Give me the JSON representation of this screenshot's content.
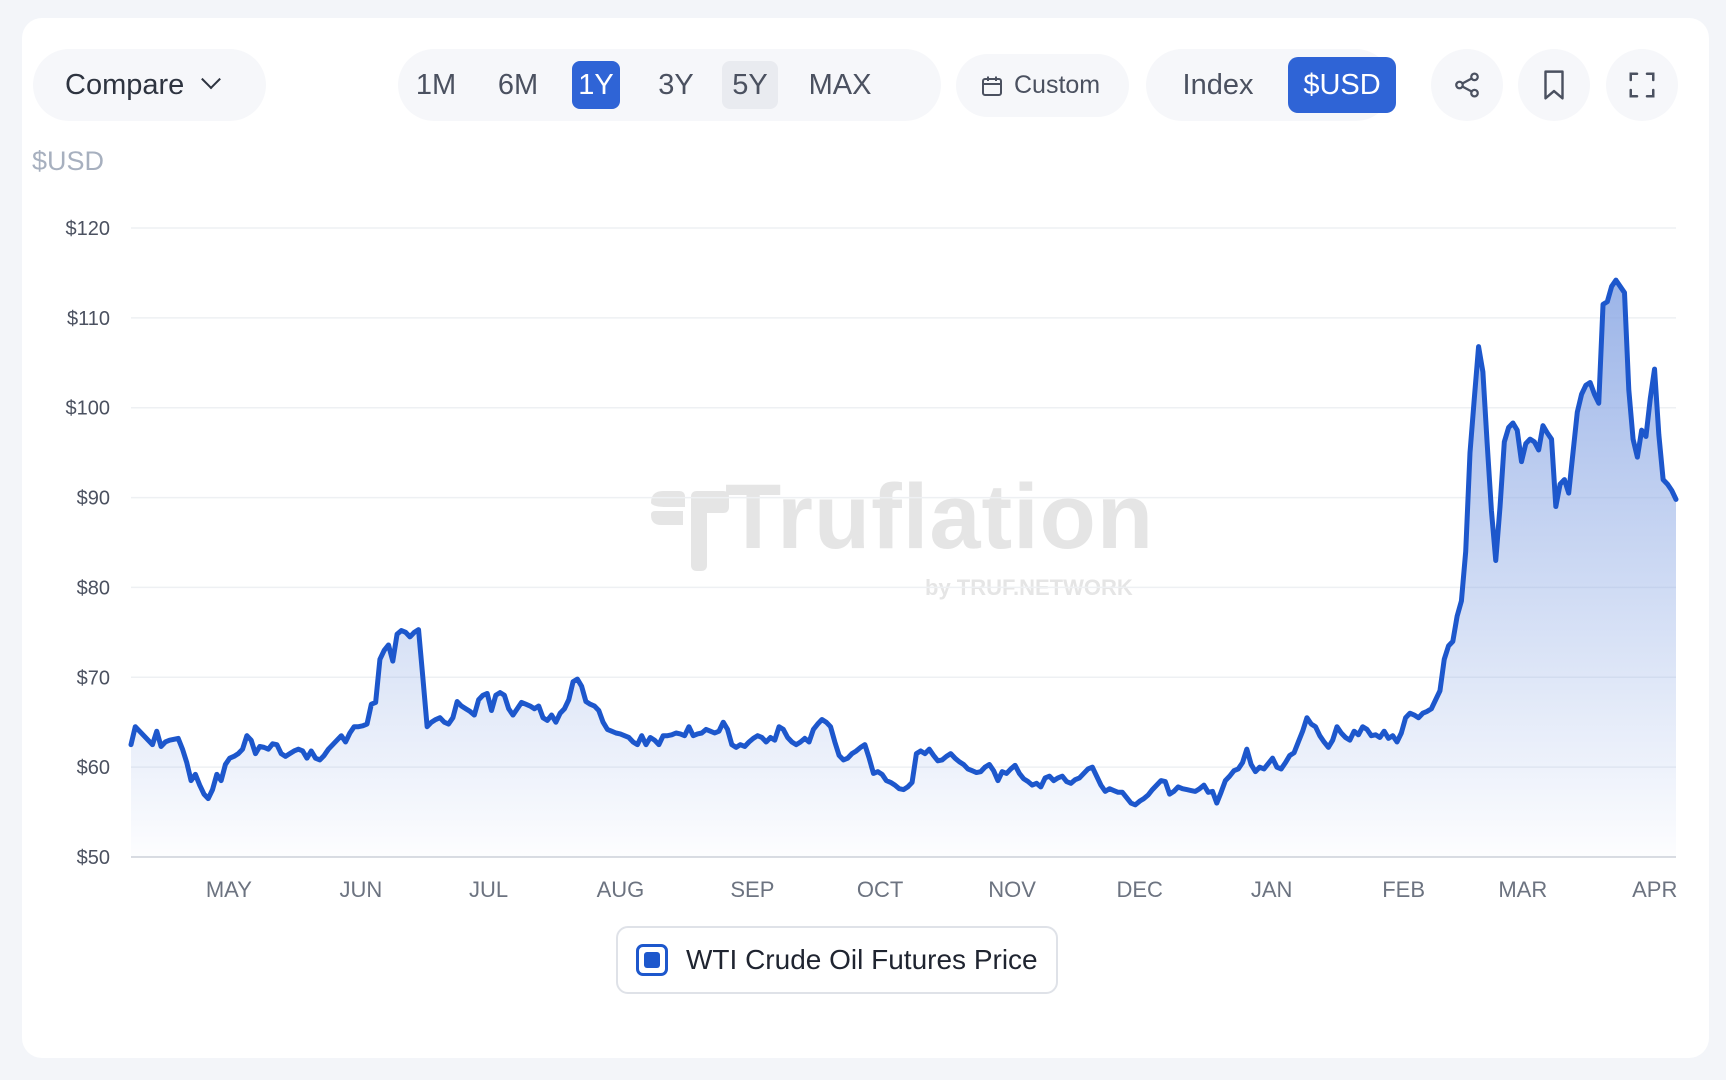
{
  "toolbar": {
    "compare_label": "Compare",
    "ranges": [
      {
        "label": "1M",
        "state": "normal"
      },
      {
        "label": "6M",
        "state": "normal"
      },
      {
        "label": "1Y",
        "state": "active"
      },
      {
        "label": "3Y",
        "state": "normal"
      },
      {
        "label": "5Y",
        "state": "hover"
      },
      {
        "label": "MAX",
        "state": "normal"
      }
    ],
    "custom_label": "Custom",
    "mode_index_label": "Index",
    "mode_usd_label": "$USD",
    "icons": [
      "share-icon",
      "bookmark-icon",
      "fullscreen-icon"
    ]
  },
  "colors": {
    "line": "#1d57cc",
    "fill_top": "#8aa7e4",
    "active": "#2f64d6"
  },
  "watermark": {
    "brand": "Truflation",
    "tagline": "by TRUF.NETWORK"
  },
  "chart_data": {
    "type": "area",
    "unit_label": "$USD",
    "ylim": [
      50,
      120
    ],
    "yticks": [
      50,
      60,
      70,
      80,
      90,
      100,
      110,
      120
    ],
    "ytick_labels": [
      "$50",
      "$60",
      "$70",
      "$80",
      "$90",
      "$100",
      "$110",
      "$120"
    ],
    "x_tick_labels": [
      "MAY",
      "JUN",
      "JUL",
      "AUG",
      "SEP",
      "OCT",
      "NOV",
      "DEC",
      "JAN",
      "FEB",
      "MAR",
      "APR"
    ],
    "grid": true,
    "legend_position": "bottom-center",
    "series": [
      {
        "name": "WTI Crude Oil Futures Price",
        "x_start": "2025-04-22",
        "x_end": "2026-04-20",
        "values": [
          62.5,
          64.5,
          64.0,
          63.5,
          63.0,
          62.5,
          64.0,
          62.3,
          62.8,
          63.0,
          63.1,
          63.2,
          62.0,
          60.5,
          58.5,
          59.2,
          58.0,
          57.0,
          56.5,
          57.5,
          59.2,
          58.5,
          60.3,
          61.0,
          61.2,
          61.5,
          62.0,
          63.5,
          63.0,
          61.5,
          62.3,
          62.2,
          62.0,
          62.6,
          62.5,
          61.5,
          61.2,
          61.5,
          61.8,
          62.0,
          61.8,
          61.0,
          61.8,
          61.0,
          60.8,
          61.3,
          62.0,
          62.5,
          63.0,
          63.5,
          62.8,
          63.8,
          64.5,
          64.5,
          64.6,
          64.8,
          67.0,
          67.2,
          72.0,
          73.0,
          73.6,
          71.8,
          74.8,
          75.2,
          75.0,
          74.5,
          75.0,
          75.3,
          70.0,
          64.5,
          65.0,
          65.3,
          65.5,
          65.0,
          64.8,
          65.5,
          67.3,
          66.8,
          66.5,
          66.2,
          65.8,
          67.5,
          68.0,
          68.2,
          66.3,
          68.0,
          68.3,
          68.0,
          66.5,
          65.8,
          66.5,
          67.2,
          67.0,
          66.8,
          66.5,
          66.8,
          65.5,
          65.2,
          65.8,
          65.0,
          66.0,
          66.5,
          67.5,
          69.5,
          69.8,
          69.0,
          67.3,
          67.0,
          66.8,
          66.3,
          65.0,
          64.2,
          64.0,
          63.8,
          63.7,
          63.5,
          63.3,
          62.8,
          62.5,
          63.5,
          62.5,
          63.3,
          63.0,
          62.5,
          63.5,
          63.5,
          63.6,
          63.8,
          63.7,
          63.5,
          64.5,
          63.5,
          63.7,
          63.8,
          64.2,
          64.0,
          63.8,
          64.0,
          65.0,
          64.2,
          62.5,
          62.2,
          62.5,
          62.3,
          62.8,
          63.2,
          63.5,
          63.3,
          62.8,
          63.3,
          63.0,
          64.5,
          64.2,
          63.3,
          62.8,
          62.5,
          62.8,
          63.2,
          62.8,
          64.2,
          64.8,
          65.3,
          65.0,
          64.5,
          62.8,
          61.3,
          60.8,
          61.0,
          61.5,
          61.8,
          62.2,
          62.5,
          61.0,
          59.3,
          59.5,
          59.2,
          58.5,
          58.3,
          58.0,
          57.6,
          57.5,
          57.8,
          58.3,
          61.5,
          61.8,
          61.5,
          62.0,
          61.3,
          60.7,
          60.8,
          61.2,
          61.5,
          61.0,
          60.6,
          60.3,
          59.8,
          59.6,
          59.4,
          59.5,
          60.0,
          60.3,
          59.6,
          58.5,
          59.5,
          59.3,
          59.8,
          60.2,
          59.3,
          58.7,
          58.4,
          58.0,
          58.2,
          57.8,
          58.8,
          59.0,
          58.5,
          58.8,
          59.0,
          58.4,
          58.2,
          58.6,
          58.8,
          59.3,
          59.8,
          60.0,
          59.0,
          58.0,
          57.3,
          57.6,
          57.4,
          57.2,
          57.2,
          56.6,
          56.0,
          55.8,
          56.2,
          56.5,
          56.9,
          57.5,
          58.0,
          58.5,
          58.4,
          57.0,
          57.3,
          57.8,
          57.6,
          57.5,
          57.4,
          57.3,
          57.6,
          58.0,
          57.2,
          57.3,
          56.0,
          57.2,
          58.5,
          59.0,
          59.6,
          59.8,
          60.5,
          62.0,
          60.3,
          59.5,
          60.0,
          59.8,
          60.4,
          61.0,
          60.0,
          59.8,
          60.5,
          61.3,
          61.6,
          62.8,
          64.0,
          65.5,
          64.8,
          64.5,
          63.5,
          62.8,
          62.2,
          63.0,
          64.5,
          63.8,
          63.3,
          63.0,
          64.0,
          63.6,
          64.5,
          64.2,
          63.5,
          63.6,
          63.3,
          64.0,
          63.2,
          63.5,
          62.8,
          63.8,
          65.5,
          66.0,
          65.8,
          65.5,
          66.0,
          66.2,
          66.5,
          67.5,
          68.5,
          72.0,
          73.5,
          74.0,
          76.8,
          78.5,
          84.0,
          95.0,
          101.0,
          106.8,
          104.0,
          96.0,
          88.5,
          83.0,
          89.0,
          96.2,
          97.8,
          98.3,
          97.5,
          94.0,
          96.0,
          96.5,
          96.2,
          95.3,
          98.0,
          97.2,
          96.5,
          89.0,
          91.5,
          92.0,
          90.5,
          95.0,
          99.5,
          101.5,
          102.5,
          102.8,
          101.5,
          100.5,
          111.5,
          111.8,
          113.5,
          114.2,
          113.5,
          112.8,
          102.0,
          96.5,
          94.5,
          97.5,
          96.8,
          101.0,
          104.3,
          97.0,
          92.0,
          91.5,
          90.8,
          89.8
        ]
      }
    ]
  }
}
